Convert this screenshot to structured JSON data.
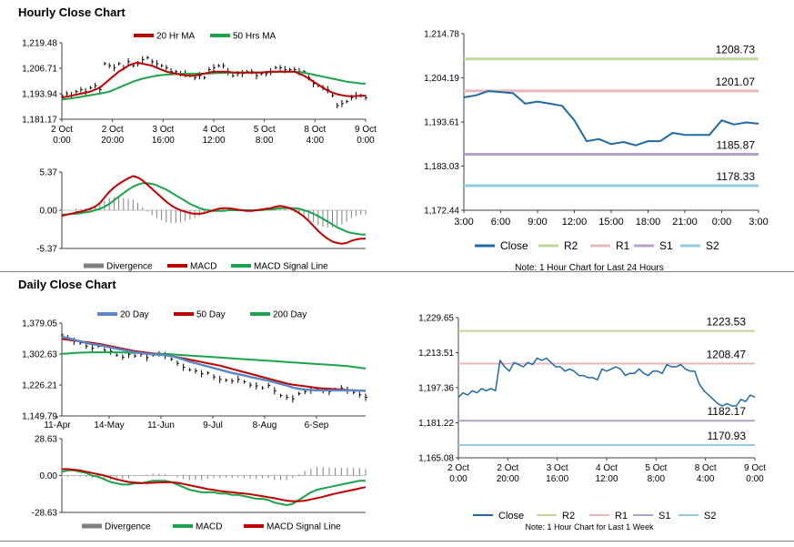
{
  "sections": {
    "hourly_title": "Hourly Close Chart",
    "daily_title": "Daily Close Chart"
  },
  "colors": {
    "price": "#000000",
    "ma_red": "#c00000",
    "ma_green": "#1aa34a",
    "ma_blue": "#5b87c5",
    "close_line": "#1f6aa5",
    "r2": "#c3d69b",
    "r1": "#e6b9b8",
    "s1": "#b3a2c7",
    "s2": "#93cddd",
    "axis": "#404040",
    "divergence": "#808080"
  },
  "chart_data": [
    {
      "id": "hourly-price",
      "type": "line",
      "title": "",
      "xlabel": "",
      "ylabel": "",
      "ylim": [
        1181.17,
        1219.48
      ],
      "y_ticks": [
        "1,219.48",
        "1,206.71",
        "1,193.94",
        "1,181.17"
      ],
      "x_ticks": [
        [
          "2 Oct",
          "0:00"
        ],
        [
          "2 Oct",
          "20:00"
        ],
        [
          "3 Oct",
          "16:00"
        ],
        [
          "4 Oct",
          "12:00"
        ],
        [
          "5 Oct",
          "8:00"
        ],
        [
          "8 Oct",
          "4:00"
        ],
        [
          "9 Oct",
          "0:00"
        ]
      ],
      "legend": [
        "20 Hr MA",
        "50 Hrs MA"
      ],
      "series": [
        {
          "name": "Price",
          "values": [
            1193,
            1194,
            1193,
            1195,
            1196,
            1195,
            1197,
            1198,
            1196,
            1209,
            1208,
            1207,
            1209,
            1207,
            1210,
            1208,
            1209,
            1211,
            1212,
            1210,
            1209,
            1208,
            1207,
            1205,
            1205,
            1204,
            1204,
            1203,
            1202,
            1203,
            1202,
            1206,
            1207,
            1208,
            1208,
            1205,
            1203,
            1204,
            1204,
            1205,
            1205,
            1203,
            1204,
            1204,
            1205,
            1207,
            1207,
            1206,
            1206,
            1206,
            1205,
            1205,
            1202,
            1199,
            1198,
            1197,
            1196,
            1193,
            1188,
            1189,
            1190,
            1192,
            1193,
            1193,
            1192
          ]
        },
        {
          "name": "20 Hr MA",
          "values": [
            1192,
            1192.5,
            1193,
            1193.5,
            1194,
            1194.5,
            1195,
            1196,
            1197,
            1199,
            1201,
            1203,
            1205,
            1206.5,
            1208,
            1209,
            1209.5,
            1209,
            1208.5,
            1208,
            1207,
            1206,
            1205,
            1204.5,
            1204,
            1203.5,
            1203.2,
            1203,
            1203,
            1203.5,
            1204,
            1204.5,
            1205,
            1205,
            1205,
            1205,
            1204.5,
            1204.5,
            1204.5,
            1204.5,
            1204.5,
            1204.5,
            1204.6,
            1204.8,
            1205,
            1205,
            1205,
            1205,
            1205,
            1205,
            1204,
            1203,
            1201.5,
            1200,
            1198.5,
            1197,
            1195.5,
            1194.5,
            1193.7,
            1193.2,
            1192.8,
            1192.7,
            1192.8,
            1193,
            1193
          ]
        },
        {
          "name": "50 Hrs MA",
          "values": [
            1191,
            1191.3,
            1191.6,
            1192,
            1192.4,
            1192.8,
            1193.2,
            1193.6,
            1194,
            1194.5,
            1195,
            1196,
            1197,
            1198,
            1199,
            1200,
            1200.8,
            1201.5,
            1202,
            1202.5,
            1203,
            1203.3,
            1203.5,
            1203.7,
            1203.8,
            1203.9,
            1204,
            1204,
            1204,
            1204,
            1204,
            1204.1,
            1204.2,
            1204.3,
            1204.4,
            1204.5,
            1204.5,
            1204.5,
            1204.5,
            1204.5,
            1204.5,
            1204.5,
            1204.6,
            1204.7,
            1204.8,
            1204.9,
            1205,
            1205,
            1205,
            1205,
            1204.8,
            1204.5,
            1204,
            1203.5,
            1203,
            1202.5,
            1202,
            1201.5,
            1201,
            1200.5,
            1200,
            1199.7,
            1199.4,
            1199.1,
            1199
          ]
        }
      ]
    },
    {
      "id": "hourly-macd",
      "type": "line",
      "ylim": [
        -5.37,
        5.37
      ],
      "y_ticks": [
        "5.37",
        "0.00",
        "-5.37"
      ],
      "legend": [
        "Divergence",
        "MACD",
        "MACD Signal Line"
      ],
      "series": [
        {
          "name": "MACD",
          "values": [
            -0.8,
            -0.6,
            -0.5,
            -0.3,
            -0.2,
            0,
            0.2,
            0.5,
            1,
            1.8,
            2.6,
            3.2,
            3.7,
            4.1,
            4.5,
            4.8,
            4.6,
            4.2,
            3.6,
            3,
            2.4,
            1.8,
            1.2,
            0.7,
            0.3,
            0,
            -0.2,
            -0.4,
            -0.5,
            -0.5,
            -0.4,
            -0.2,
            0,
            0.2,
            0.3,
            0.3,
            0.2,
            0.1,
            0,
            -0.1,
            -0.1,
            0,
            0.1,
            0.2,
            0.3,
            0.5,
            0.6,
            0.5,
            0.3,
            0,
            -0.4,
            -0.9,
            -1.5,
            -2.2,
            -2.9,
            -3.5,
            -4,
            -4.4,
            -4.6,
            -4.7,
            -4.6,
            -4.3,
            -4.1,
            -4,
            -4
          ]
        },
        {
          "name": "MACD Signal Line",
          "values": [
            -0.6,
            -0.6,
            -0.5,
            -0.5,
            -0.4,
            -0.3,
            -0.2,
            0,
            0.2,
            0.5,
            0.9,
            1.4,
            1.9,
            2.4,
            2.9,
            3.3,
            3.6,
            3.8,
            3.8,
            3.7,
            3.5,
            3.2,
            2.9,
            2.5,
            2.1,
            1.7,
            1.3,
            0.9,
            0.6,
            0.3,
            0.1,
            0,
            -0.1,
            -0.1,
            -0.1,
            0,
            0,
            0,
            0,
            0,
            0,
            0,
            0,
            0.1,
            0.1,
            0.2,
            0.3,
            0.3,
            0.3,
            0.3,
            0.2,
            0,
            -0.2,
            -0.5,
            -0.8,
            -1.2,
            -1.6,
            -2,
            -2.4,
            -2.7,
            -3,
            -3.2,
            -3.3,
            -3.4,
            -3.4
          ]
        }
      ]
    },
    {
      "id": "hourly-pivots",
      "type": "line",
      "ylim": [
        1172.44,
        1214.78
      ],
      "y_ticks": [
        "1,214.78",
        "1,204.19",
        "1,193.61",
        "1,183.03",
        "1,172.44"
      ],
      "x_ticks": [
        "3:00",
        "6:00",
        "9:00",
        "12:00",
        "15:00",
        "18:00",
        "21:00",
        "0:00",
        "3:00"
      ],
      "legend": [
        "Close",
        "R2",
        "R1",
        "S1",
        "S2"
      ],
      "note": "Note: 1 Hour Chart for Last 24 Hours",
      "levels": [
        {
          "name": "R2",
          "value": 1208.73,
          "label": "1208.73"
        },
        {
          "name": "R1",
          "value": 1201.07,
          "label": "1201.07"
        },
        {
          "name": "S1",
          "value": 1185.87,
          "label": "1185.87"
        },
        {
          "name": "S2",
          "value": 1178.33,
          "label": "1178.33"
        }
      ],
      "series": [
        {
          "name": "Close",
          "values": [
            1199.5,
            1200,
            1201,
            1200.8,
            1200.5,
            1198,
            1198.5,
            1198,
            1197.5,
            1194,
            1189,
            1189.5,
            1188.3,
            1188.8,
            1188,
            1189,
            1189,
            1191,
            1190.5,
            1190.5,
            1190.5,
            1194,
            1193,
            1193.5,
            1193.2
          ]
        }
      ]
    },
    {
      "id": "daily-price",
      "type": "line",
      "ylim": [
        1149.79,
        1379.05
      ],
      "y_ticks": [
        "1,379.05",
        "1,302.63",
        "1,226.21",
        "1,149.79"
      ],
      "x_ticks": [
        "11-Apr",
        "14-May",
        "11-Jun",
        "9-Jul",
        "8-Aug",
        "6-Sep"
      ],
      "legend": [
        "20 Day",
        "50 Day",
        "200 Day"
      ],
      "series": [
        {
          "name": "Price",
          "values": [
            1350,
            1343,
            1334,
            1330,
            1322,
            1317,
            1322,
            1312,
            1310,
            1300,
            1295,
            1302,
            1298,
            1302,
            1294,
            1300,
            1303,
            1299,
            1290,
            1280,
            1270,
            1264,
            1261,
            1254,
            1256,
            1246,
            1240,
            1238,
            1236,
            1240,
            1234,
            1226,
            1224,
            1219,
            1225,
            1212,
            1200,
            1196,
            1192,
            1205,
            1210,
            1213,
            1217,
            1212,
            1210,
            1215,
            1219,
            1213,
            1208,
            1202,
            1196
          ]
        },
        {
          "name": "20 Day",
          "values": [
            1345,
            1342,
            1338,
            1334,
            1330,
            1327,
            1325,
            1322,
            1319,
            1316,
            1313,
            1310,
            1307,
            1305,
            1303,
            1302,
            1301,
            1300,
            1298,
            1294,
            1289,
            1284,
            1280,
            1276,
            1272,
            1268,
            1264,
            1260,
            1256,
            1253,
            1250,
            1246,
            1243,
            1240,
            1237,
            1233,
            1229,
            1225,
            1220,
            1217,
            1215,
            1214,
            1213,
            1213,
            1213,
            1213,
            1213,
            1213,
            1213,
            1212,
            1212
          ]
        },
        {
          "name": "50 Day",
          "values": [
            1340,
            1338,
            1336,
            1334,
            1332,
            1330,
            1328,
            1325,
            1322,
            1319,
            1316,
            1313,
            1310,
            1308,
            1306,
            1304,
            1302,
            1300,
            1298,
            1295,
            1292,
            1289,
            1286,
            1283,
            1280,
            1277,
            1274,
            1270,
            1266,
            1262,
            1258,
            1254,
            1250,
            1246,
            1242,
            1238,
            1234,
            1230,
            1227,
            1225,
            1223,
            1221,
            1219,
            1218,
            1217,
            1216,
            1215,
            1214,
            1213,
            1212,
            1211
          ]
        },
        {
          "name": "200 Day",
          "values": [
            1303,
            1304,
            1305,
            1306,
            1306.5,
            1307,
            1307,
            1307,
            1307,
            1307,
            1306.5,
            1306,
            1305.5,
            1305,
            1304.5,
            1304,
            1303.5,
            1303,
            1302,
            1301,
            1300,
            1299,
            1298,
            1297,
            1296,
            1295,
            1294,
            1293,
            1292,
            1291,
            1290,
            1289,
            1288,
            1287,
            1286,
            1285,
            1284,
            1283,
            1282,
            1281,
            1280,
            1279,
            1278,
            1277,
            1276,
            1275,
            1274,
            1273,
            1271,
            1269,
            1267
          ]
        }
      ]
    },
    {
      "id": "daily-macd",
      "type": "line",
      "ylim": [
        -28.63,
        28.63
      ],
      "y_ticks": [
        "28.63",
        "0.00",
        "-28.63"
      ],
      "legend": [
        "Divergence",
        "MACD",
        "MACD Signal Line"
      ],
      "series": [
        {
          "name": "MACD",
          "values": [
            3,
            4,
            4,
            3,
            2,
            0,
            -1,
            -3,
            -5,
            -6,
            -7,
            -7,
            -6,
            -6,
            -5,
            -4,
            -4,
            -4,
            -5,
            -7,
            -9,
            -11,
            -12,
            -13,
            -13,
            -13,
            -14,
            -14,
            -15,
            -15,
            -16,
            -17,
            -18,
            -18,
            -19,
            -21,
            -22,
            -23,
            -22,
            -19,
            -16,
            -13,
            -11,
            -10,
            -9,
            -8,
            -7,
            -6,
            -5,
            -4,
            -4
          ]
        },
        {
          "name": "MACD Signal Line",
          "values": [
            5,
            5,
            4.5,
            4,
            3,
            2,
            1,
            0,
            -1.5,
            -3,
            -4,
            -5,
            -5.5,
            -5.7,
            -5.8,
            -5.6,
            -5.4,
            -5.2,
            -5.2,
            -5.6,
            -6.5,
            -7.5,
            -8.5,
            -9.5,
            -10.5,
            -11.2,
            -12,
            -12.5,
            -13,
            -13.5,
            -14,
            -14.5,
            -15.3,
            -16,
            -16.8,
            -17.6,
            -18.6,
            -19.5,
            -20,
            -20,
            -19.5,
            -18.5,
            -17.5,
            -16.5,
            -15.2,
            -14,
            -13,
            -12,
            -11,
            -10,
            -9
          ]
        }
      ]
    },
    {
      "id": "daily-pivots",
      "type": "line",
      "ylim": [
        1165.08,
        1229.65
      ],
      "y_ticks": [
        "1,229.65",
        "1,213.51",
        "1,197.36",
        "1,181.22",
        "1,165.08"
      ],
      "x_ticks": [
        [
          "2 Oct",
          "0:00"
        ],
        [
          "2 Oct",
          "20:00"
        ],
        [
          "3 Oct",
          "16:00"
        ],
        [
          "4 Oct",
          "12:00"
        ],
        [
          "5 Oct",
          "8:00"
        ],
        [
          "8 Oct",
          "4:00"
        ],
        [
          "9 Oct",
          "0:00"
        ]
      ],
      "legend": [
        "Close",
        "R2",
        "R1",
        "S1",
        "S2"
      ],
      "note": "Note: 1 Hour Chart for Last 1 Week",
      "levels": [
        {
          "name": "R2",
          "value": 1223.53,
          "label": "1223.53"
        },
        {
          "name": "R1",
          "value": 1208.47,
          "label": "1208.47"
        },
        {
          "name": "S1",
          "value": 1182.17,
          "label": "1182.17"
        },
        {
          "name": "S2",
          "value": 1170.93,
          "label": "1170.93"
        }
      ],
      "series": [
        {
          "name": "Close",
          "values": [
            1193,
            1195,
            1194,
            1196,
            1195,
            1197,
            1196,
            1197,
            1196,
            1210,
            1207,
            1205,
            1209,
            1208,
            1207,
            1209,
            1208,
            1211,
            1210,
            1211,
            1209,
            1207,
            1207,
            1205,
            1206,
            1205,
            1203,
            1203,
            1202,
            1202,
            1201,
            1206,
            1205,
            1206,
            1207,
            1206,
            1203,
            1204,
            1204,
            1206,
            1204,
            1203,
            1205,
            1205,
            1204,
            1208,
            1207,
            1207,
            1208,
            1206,
            1205,
            1205,
            1199,
            1196,
            1194,
            1192,
            1190,
            1189,
            1190,
            1189,
            1189,
            1192,
            1191,
            1194,
            1193
          ]
        }
      ]
    }
  ]
}
